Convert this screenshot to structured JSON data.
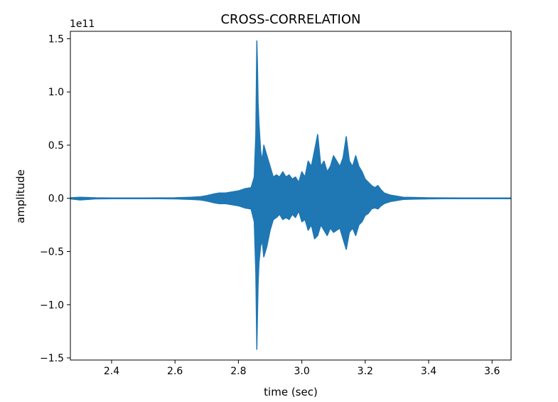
{
  "chart_data": {
    "type": "line",
    "title": "CROSS-CORRELATION",
    "xlabel": "time (sec)",
    "ylabel": "amplitude",
    "y_offset_label": "1e11",
    "xlim": [
      2.27,
      3.66
    ],
    "ylim": [
      -1.52,
      1.57
    ],
    "x_ticks": [
      2.4,
      2.6,
      2.8,
      3.0,
      3.2,
      3.4,
      3.6
    ],
    "x_tick_labels": [
      "2.4",
      "2.6",
      "2.8",
      "3.0",
      "3.2",
      "3.4",
      "3.6"
    ],
    "y_ticks": [
      -1.5,
      -1.0,
      -0.5,
      0.0,
      0.5,
      1.0,
      1.5
    ],
    "y_tick_labels": [
      "−1.5",
      "−1.0",
      "−0.5",
      "0.0",
      "0.5",
      "1.0",
      "1.5"
    ],
    "grid": false,
    "series_color": "#1f77b4",
    "series": [
      {
        "x": [
          2.27,
          2.3,
          2.35,
          2.4,
          2.45,
          2.5,
          2.55,
          2.6,
          2.65,
          2.68,
          2.7,
          2.72,
          2.74,
          2.76,
          2.78,
          2.8,
          2.82,
          2.84,
          2.85,
          2.855,
          2.858,
          2.86,
          2.862,
          2.865,
          2.87,
          2.875,
          2.88,
          2.885,
          2.89,
          2.9,
          2.91,
          2.92,
          2.93,
          2.94,
          2.95,
          2.96,
          2.97,
          2.98,
          2.99,
          3.0,
          3.01,
          3.02,
          3.03,
          3.04,
          3.05,
          3.06,
          3.07,
          3.08,
          3.09,
          3.1,
          3.11,
          3.12,
          3.13,
          3.14,
          3.15,
          3.16,
          3.17,
          3.18,
          3.19,
          3.2,
          3.21,
          3.22,
          3.23,
          3.24,
          3.25,
          3.26,
          3.28,
          3.3,
          3.32,
          3.35,
          3.4,
          3.45,
          3.5,
          3.55,
          3.6,
          3.66
        ],
        "y_upper": [
          0.005,
          0.01,
          0.005,
          0.003,
          0.003,
          0.003,
          0.004,
          0.005,
          0.01,
          0.015,
          0.025,
          0.04,
          0.05,
          0.05,
          0.06,
          0.07,
          0.09,
          0.1,
          0.2,
          0.6,
          1.48,
          1.25,
          0.9,
          0.7,
          0.45,
          0.35,
          0.5,
          0.45,
          0.4,
          0.3,
          0.2,
          0.22,
          0.2,
          0.25,
          0.2,
          0.22,
          0.18,
          0.2,
          0.15,
          0.25,
          0.2,
          0.35,
          0.3,
          0.45,
          0.6,
          0.3,
          0.35,
          0.25,
          0.3,
          0.4,
          0.35,
          0.3,
          0.38,
          0.58,
          0.35,
          0.3,
          0.4,
          0.3,
          0.25,
          0.18,
          0.15,
          0.12,
          0.1,
          0.12,
          0.08,
          0.05,
          0.03,
          0.02,
          0.01,
          0.008,
          0.005,
          0.004,
          0.003,
          0.003,
          0.003,
          0.003
        ],
        "y_lower": [
          -0.005,
          -0.015,
          -0.005,
          -0.003,
          -0.003,
          -0.003,
          -0.004,
          -0.005,
          -0.01,
          -0.015,
          -0.025,
          -0.04,
          -0.05,
          -0.05,
          -0.06,
          -0.07,
          -0.09,
          -0.1,
          -0.22,
          -0.7,
          -1.42,
          -1.1,
          -0.8,
          -0.6,
          -0.45,
          -0.4,
          -0.55,
          -0.5,
          -0.45,
          -0.3,
          -0.2,
          -0.18,
          -0.15,
          -0.2,
          -0.18,
          -0.2,
          -0.15,
          -0.18,
          -0.12,
          -0.22,
          -0.2,
          -0.3,
          -0.25,
          -0.38,
          -0.35,
          -0.25,
          -0.3,
          -0.35,
          -0.28,
          -0.32,
          -0.3,
          -0.28,
          -0.38,
          -0.48,
          -0.32,
          -0.28,
          -0.35,
          -0.25,
          -0.22,
          -0.16,
          -0.14,
          -0.1,
          -0.09,
          -0.1,
          -0.07,
          -0.05,
          -0.03,
          -0.02,
          -0.01,
          -0.008,
          -0.005,
          -0.004,
          -0.003,
          -0.003,
          -0.003,
          -0.003
        ]
      }
    ]
  }
}
